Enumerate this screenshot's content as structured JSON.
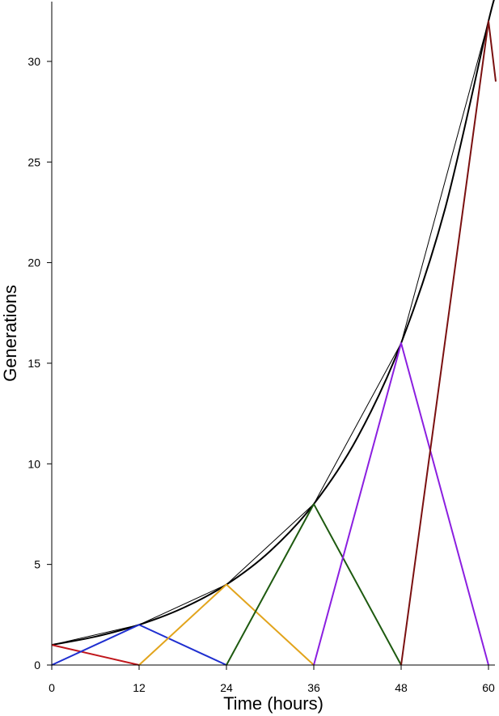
{
  "chart_data": {
    "type": "line",
    "title": "",
    "xlabel": "Time (hours)",
    "ylabel": "Generations",
    "xlim": [
      0,
      61
    ],
    "ylim": [
      0,
      33
    ],
    "x_ticks": [
      0,
      12,
      24,
      36,
      48,
      60
    ],
    "y_ticks": [
      0,
      5,
      10,
      15,
      20,
      25,
      30
    ],
    "grid": false,
    "series": [
      {
        "color": "#000000",
        "width": 2,
        "style": "smooth",
        "x": [
          0,
          6,
          12,
          18,
          24,
          30,
          36,
          42,
          48,
          54,
          60,
          61
        ],
        "y": [
          1,
          1.41,
          2,
          2.83,
          4,
          5.66,
          8,
          11.31,
          16,
          22.63,
          32,
          33.18
        ]
      },
      {
        "color": "#000000",
        "width": 1,
        "style": "linear",
        "x": [
          0,
          12,
          24,
          36,
          48,
          60,
          61
        ],
        "y": [
          1,
          2,
          4,
          8,
          16,
          32,
          33.33
        ]
      },
      {
        "color": "#c0161b",
        "width": 2,
        "style": "linear",
        "x": [
          0,
          12
        ],
        "y": [
          1,
          0
        ]
      },
      {
        "color": "#1f2fd0",
        "width": 2,
        "style": "linear",
        "x": [
          0,
          12,
          24
        ],
        "y": [
          0,
          2,
          0
        ]
      },
      {
        "color": "#e2a41c",
        "width": 2,
        "style": "linear",
        "x": [
          12,
          24,
          36
        ],
        "y": [
          0,
          4,
          0
        ]
      },
      {
        "color": "#1e5a10",
        "width": 2,
        "style": "linear",
        "x": [
          24,
          36,
          48
        ],
        "y": [
          0,
          8,
          0
        ]
      },
      {
        "color": "#8b1fe0",
        "width": 2,
        "style": "linear",
        "x": [
          36,
          48,
          60
        ],
        "y": [
          0,
          16,
          0
        ]
      },
      {
        "color": "#7a1010",
        "width": 2,
        "style": "linear",
        "x": [
          48,
          60,
          61
        ],
        "y": [
          0,
          32,
          29.0
        ]
      }
    ]
  }
}
